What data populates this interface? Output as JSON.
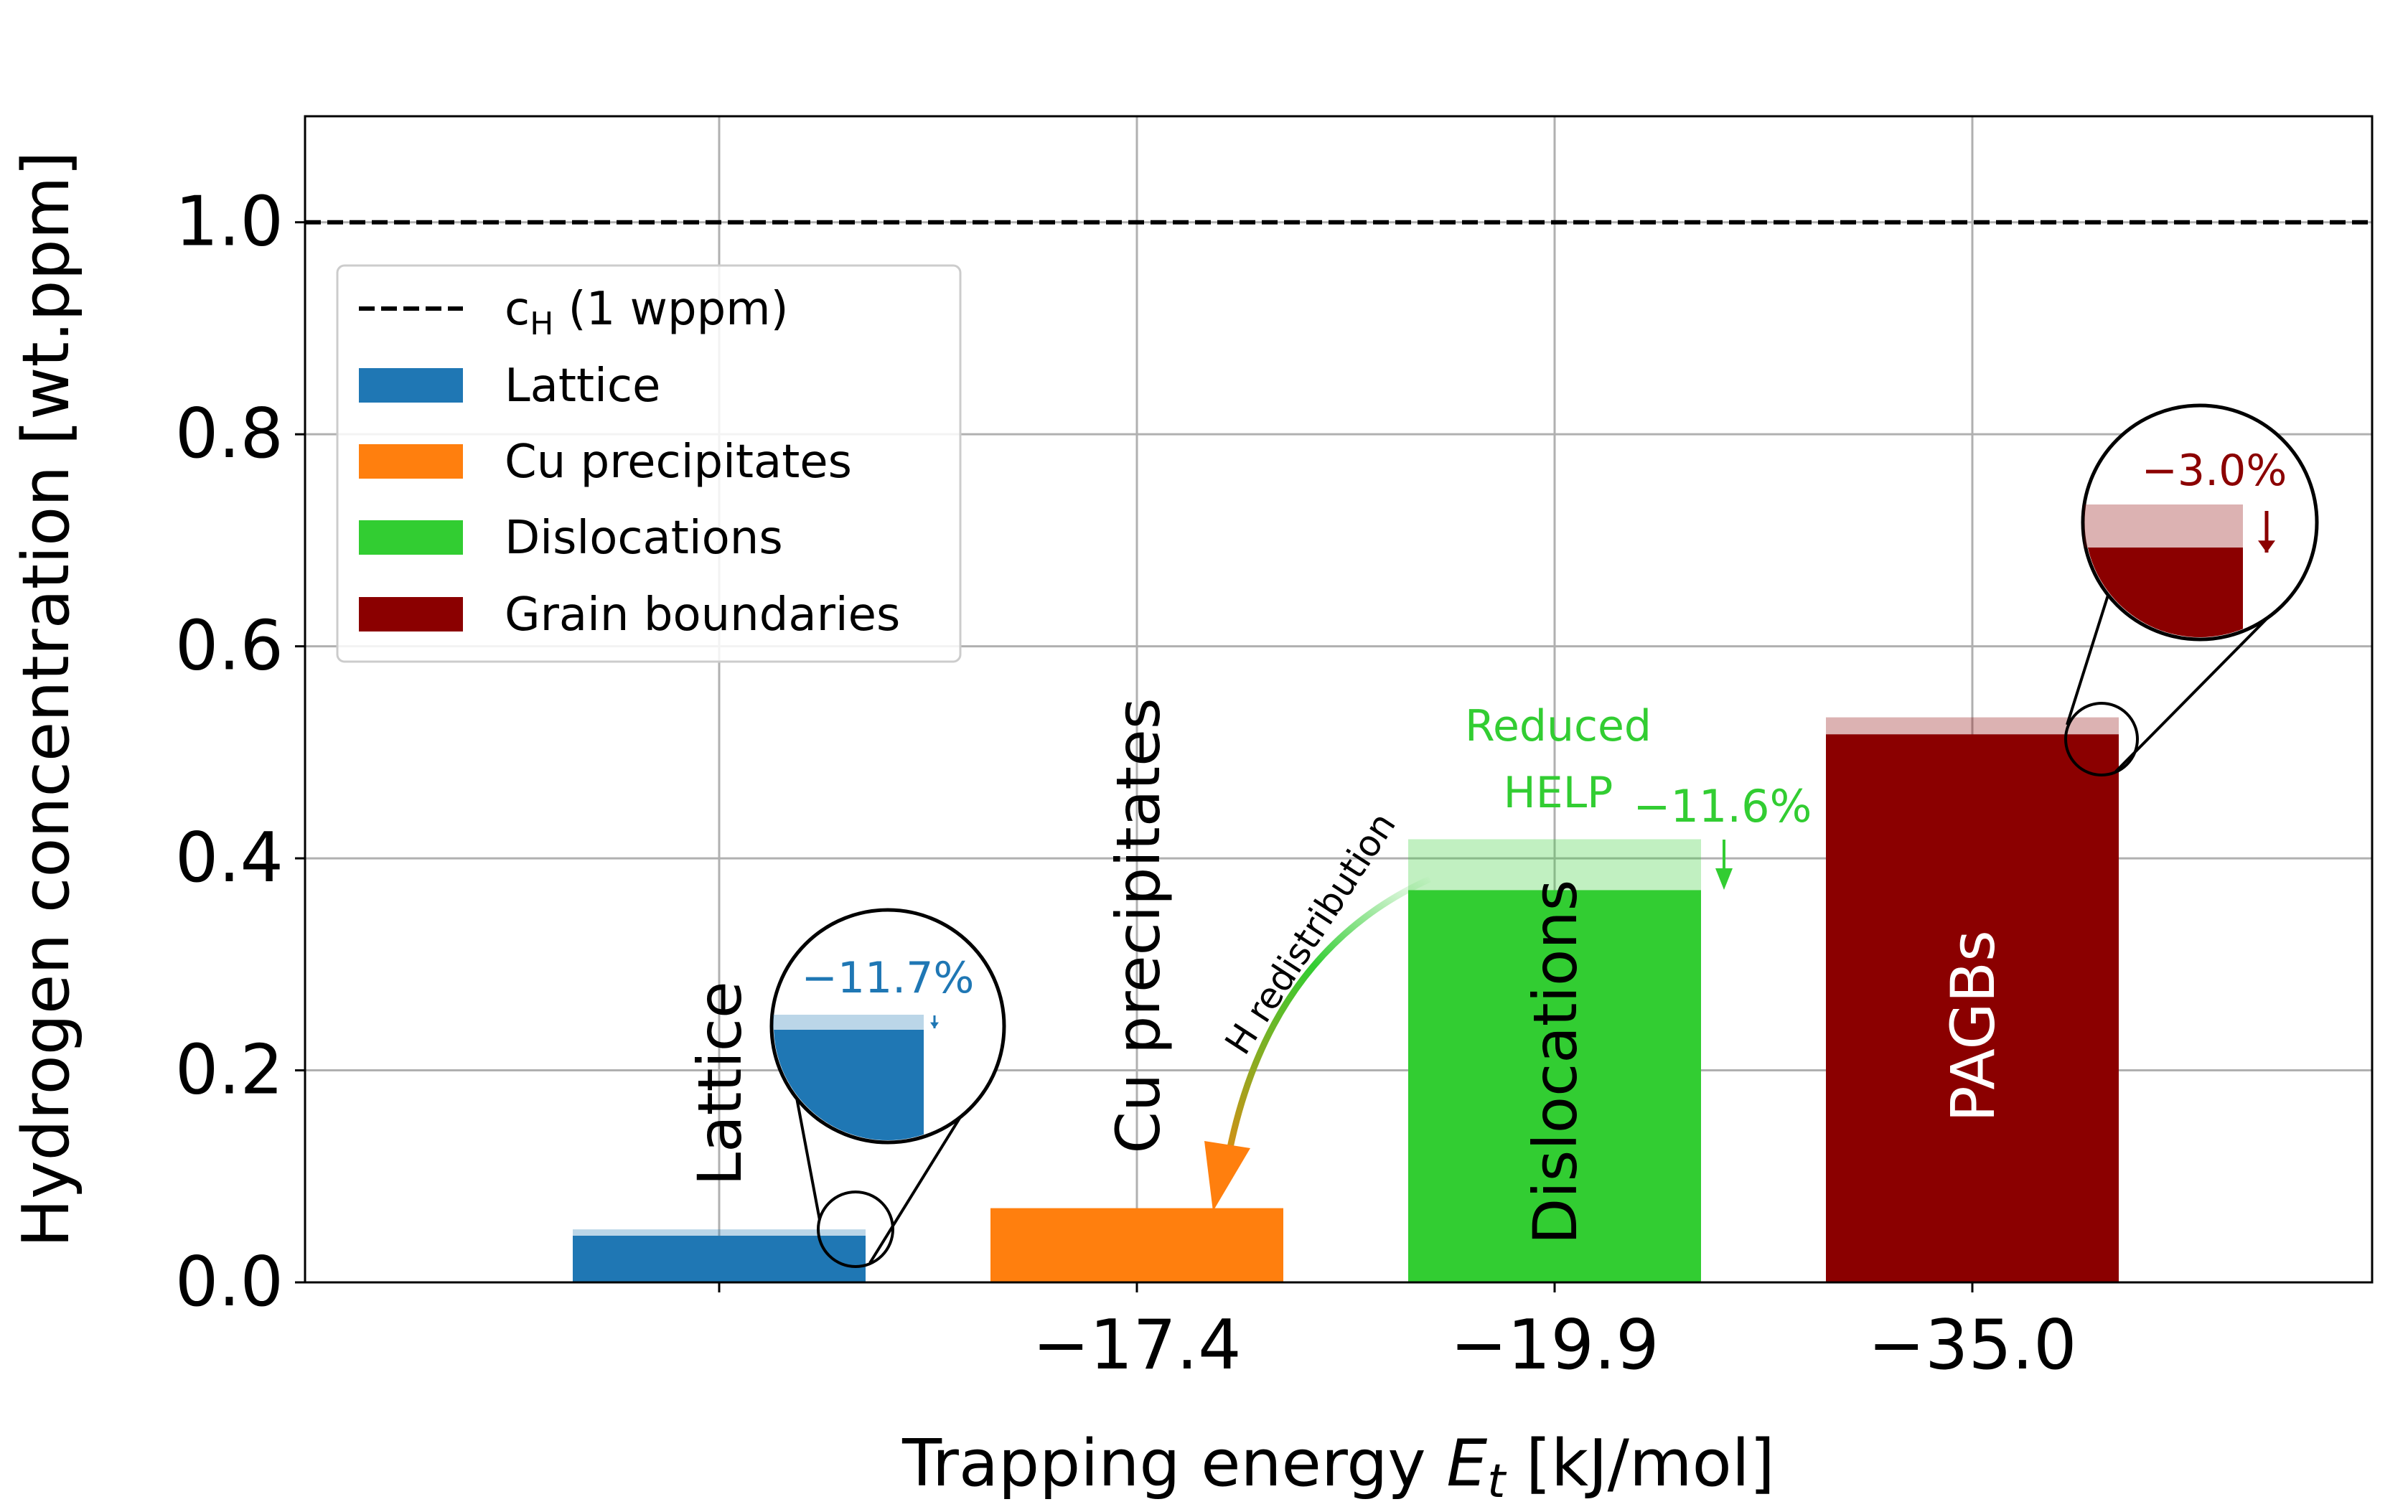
{
  "chart_data": {
    "type": "bar",
    "xlabel_prefix": "Trapping energy ",
    "xlabel_var": "E",
    "xlabel_sub": "t",
    "xlabel_suffix": " [kJ/mol]",
    "ylabel": "Hydrogen concentration [wt.ppm]",
    "ylim": [
      0,
      1.1
    ],
    "yticks": [
      0.0,
      0.2,
      0.4,
      0.6,
      0.8,
      1.0
    ],
    "ytick_labels": [
      "0.0",
      "0.2",
      "0.4",
      "0.6",
      "0.8",
      "1.0"
    ],
    "grid": true,
    "legend_position": "upper-left",
    "reference_line": {
      "value": 1.0,
      "legend_label": "c",
      "legend_sub": "H",
      "legend_suffix": " (1 wppm)",
      "style": "dashed"
    },
    "bars": [
      {
        "name": "Lattice",
        "legend_label": "Lattice",
        "x_index": 0,
        "tick_label": "",
        "value_before": 0.05,
        "value_after": 0.044,
        "color": "#1f77b4",
        "inner_label": "Lattice",
        "change_label": "−11.7%"
      },
      {
        "name": "Cu precipitates",
        "legend_label": "Cu precipitates",
        "x_index": 1,
        "tick_label": "−17.4",
        "value_before": 0.07,
        "value_after": 0.07,
        "color": "#ff7f0e",
        "inner_label": "Cu precipitates",
        "change_label": ""
      },
      {
        "name": "Dislocations",
        "legend_label": "Dislocations",
        "x_index": 2,
        "tick_label": "−19.9",
        "value_before": 0.418,
        "value_after": 0.37,
        "color": "#32cd32",
        "inner_label": "Dislocations",
        "change_label": "−11.6%"
      },
      {
        "name": "Grain boundaries",
        "legend_label": "Grain boundaries",
        "x_index": 3,
        "tick_label": "−35.0",
        "value_before": 0.533,
        "value_after": 0.517,
        "color": "#8b0000",
        "inner_label": "PAGBs",
        "change_label": "−3.0%"
      }
    ],
    "annotations": {
      "redistribution": "H redistribution",
      "help_line1": "Reduced",
      "help_line2": "HELP"
    }
  }
}
